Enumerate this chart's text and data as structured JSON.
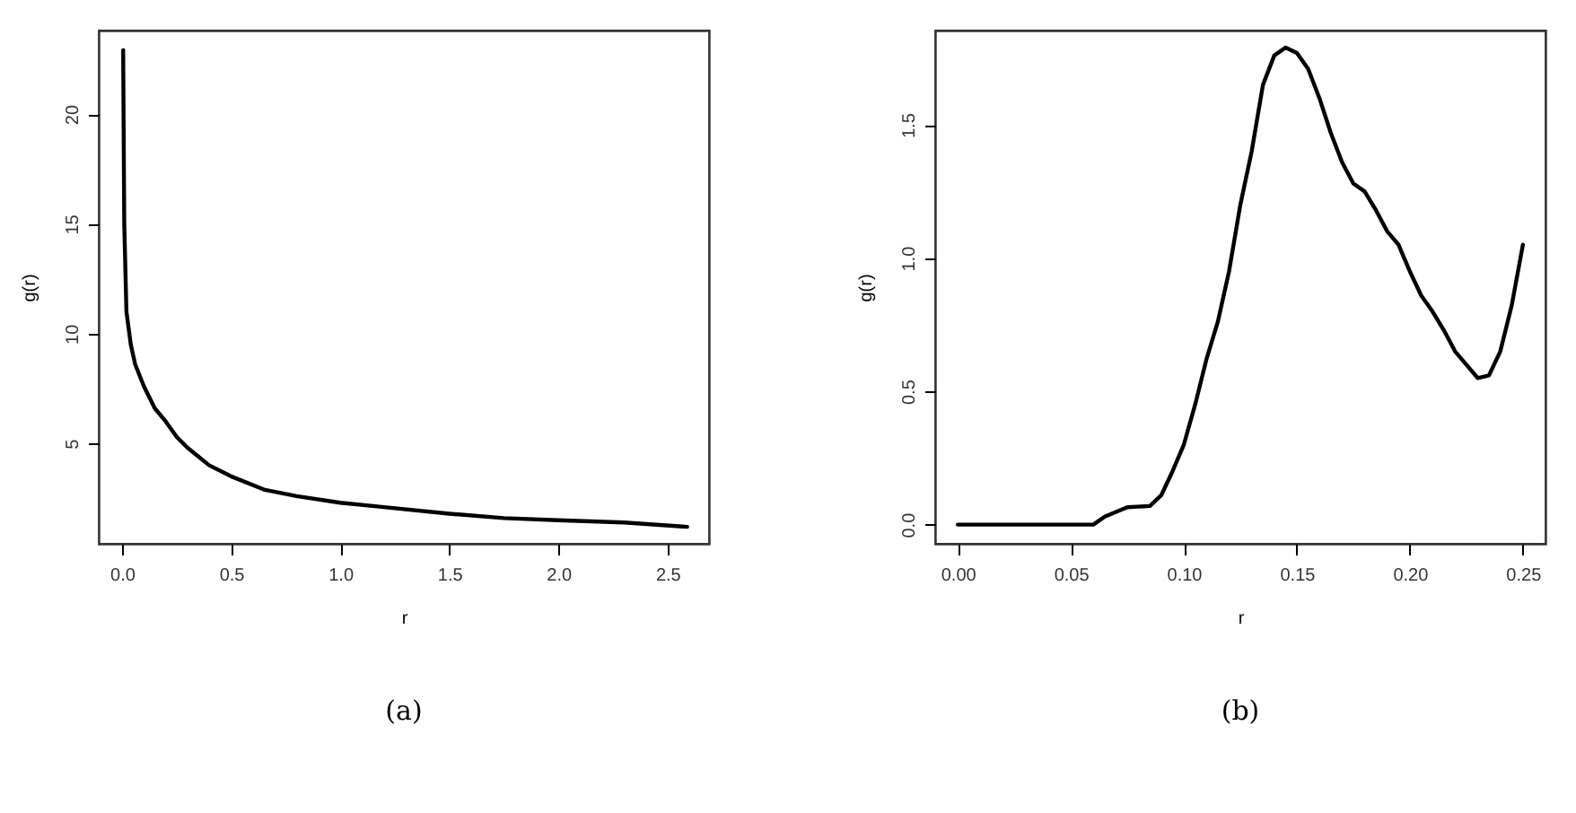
{
  "chart_data": [
    {
      "type": "line",
      "xlabel": "r",
      "ylabel": "g(r)",
      "annotations": [
        "(a)"
      ],
      "xlim": [
        -0.107,
        2.69
      ],
      "ylim": [
        0.43,
        23.8
      ],
      "xticks": [
        {
          "value": 0,
          "label": "0.0"
        },
        0.5,
        {
          "value": 1,
          "label": "1.0"
        },
        1.5,
        {
          "value": 2,
          "label": "2.0"
        },
        2.5
      ],
      "yticks": [
        5,
        10,
        15,
        20
      ],
      "grid": false,
      "legend": false,
      "marker": "none",
      "line_style": "solid",
      "series": [
        {
          "color": "#000000",
          "x": [
            0.005,
            0.01,
            0.02,
            0.04,
            0.06,
            0.1,
            0.15,
            0.2,
            0.25,
            0.3,
            0.4,
            0.5,
            0.65,
            0.8,
            1.0,
            1.2,
            1.5,
            1.75,
            2.0,
            2.3,
            2.59
          ],
          "values": [
            22.9,
            15,
            11,
            9.5,
            8.6,
            7.6,
            6.6,
            6.0,
            5.3,
            4.8,
            4.0,
            3.5,
            2.9,
            2.6,
            2.3,
            2.1,
            1.8,
            1.6,
            1.5,
            1.4,
            1.2
          ]
        }
      ]
    },
    {
      "type": "line",
      "xlabel": "r",
      "ylabel": "g(r)",
      "annotations": [
        "(b)"
      ],
      "xlim": [
        -0.01,
        0.26
      ],
      "ylim": [
        -0.072,
        1.854
      ],
      "xticks": [
        {
          "value": 0,
          "label": "0.00"
        },
        0.05,
        {
          "value": 0.1,
          "label": "0.10"
        },
        0.15,
        {
          "value": 0.2,
          "label": "0.20"
        },
        0.25
      ],
      "yticks": [
        {
          "value": 0,
          "label": "0.0"
        },
        0.5,
        {
          "value": 1,
          "label": "1.0"
        },
        1.5
      ],
      "grid": false,
      "legend": false,
      "marker": "none",
      "line_style": "solid",
      "series": [
        {
          "color": "#000000",
          "x": [
            0,
            0.06,
            0.065,
            0.075,
            0.085,
            0.09,
            0.095,
            0.1,
            0.105,
            0.11,
            0.115,
            0.12,
            0.125,
            0.13,
            0.135,
            0.14,
            0.145,
            0.15,
            0.155,
            0.16,
            0.165,
            0.17,
            0.175,
            0.18,
            0.185,
            0.19,
            0.195,
            0.2,
            0.205,
            0.21,
            0.215,
            0.22,
            0.225,
            0.23,
            0.235,
            0.24,
            0.245,
            0.25
          ],
          "values": [
            0,
            0,
            0.03,
            0.065,
            0.07,
            0.11,
            0.2,
            0.3,
            0.45,
            0.62,
            0.76,
            0.95,
            1.2,
            1.4,
            1.65,
            1.76,
            1.79,
            1.77,
            1.71,
            1.6,
            1.47,
            1.36,
            1.28,
            1.25,
            1.18,
            1.1,
            1.05,
            0.95,
            0.86,
            0.8,
            0.73,
            0.65,
            0.6,
            0.55,
            0.56,
            0.65,
            0.82,
            1.05
          ]
        }
      ]
    }
  ]
}
